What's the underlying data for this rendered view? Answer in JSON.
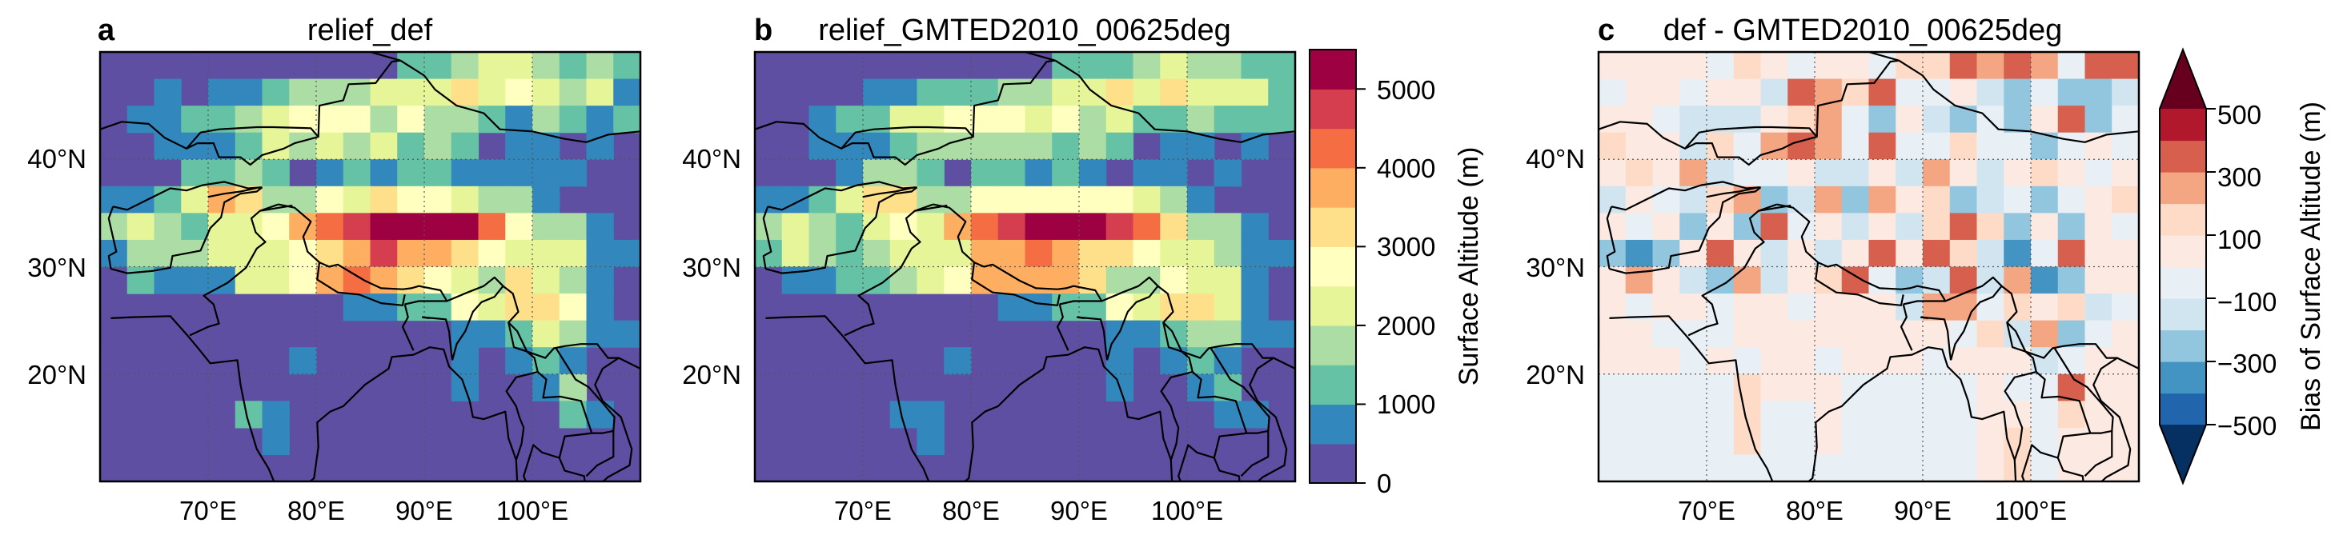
{
  "colors": {
    "spectral": [
      "#5e4fa2",
      "#3288bd",
      "#66c2a5",
      "#abdda4",
      "#e6f598",
      "#ffffbf",
      "#fee08b",
      "#fdae61",
      "#f46d43",
      "#d53e4f",
      "#9e0142"
    ],
    "rdbu": [
      "#053061",
      "#2166ac",
      "#4393c3",
      "#92c5de",
      "#d1e5f0",
      "#e8f0f6",
      "#fbe9e2",
      "#fddbc7",
      "#f4a582",
      "#d6604d",
      "#b2182b",
      "#67001f"
    ],
    "land_base": "#5e4fa2",
    "bias_base": "#fbe9e2",
    "ocean_bias": "#e8f0f6"
  },
  "panels": [
    {
      "letter": "a",
      "title": "relief_def"
    },
    {
      "letter": "b",
      "title": "relief_GMTED2010_00625deg"
    },
    {
      "letter": "c",
      "title": "def - GMTED2010_00625deg"
    }
  ],
  "axes": {
    "lon_ticks": [
      "70°E",
      "80°E",
      "90°E",
      "100°E"
    ],
    "lat_ticks": [
      "40°N",
      "30°N",
      "20°N"
    ]
  },
  "colorbar1": {
    "label": "Surface Altitude (m)",
    "ticks": [
      "0",
      "1000",
      "2000",
      "3000",
      "4000",
      "5000"
    ]
  },
  "colorbar2": {
    "label": "Bias of Surface Altitude (m)",
    "ticks": [
      "500",
      "300",
      "100",
      "−100",
      "−300",
      "−500"
    ]
  },
  "chart_data": {
    "type": "heatmap",
    "lon_range": [
      60,
      110
    ],
    "lat_range": [
      10,
      50
    ],
    "grid": true,
    "panels": [
      {
        "title": "relief_def",
        "variable": "Surface Altitude",
        "units": "m",
        "range": [
          0,
          5500
        ]
      },
      {
        "title": "relief_GMTED2010_00625deg",
        "variable": "Surface Altitude",
        "units": "m",
        "range": [
          0,
          5500
        ]
      },
      {
        "title": "def - GMTED2010_00625deg",
        "variable": "Bias of Surface Altitude",
        "units": "m",
        "range": [
          -600,
          600
        ]
      }
    ]
  }
}
